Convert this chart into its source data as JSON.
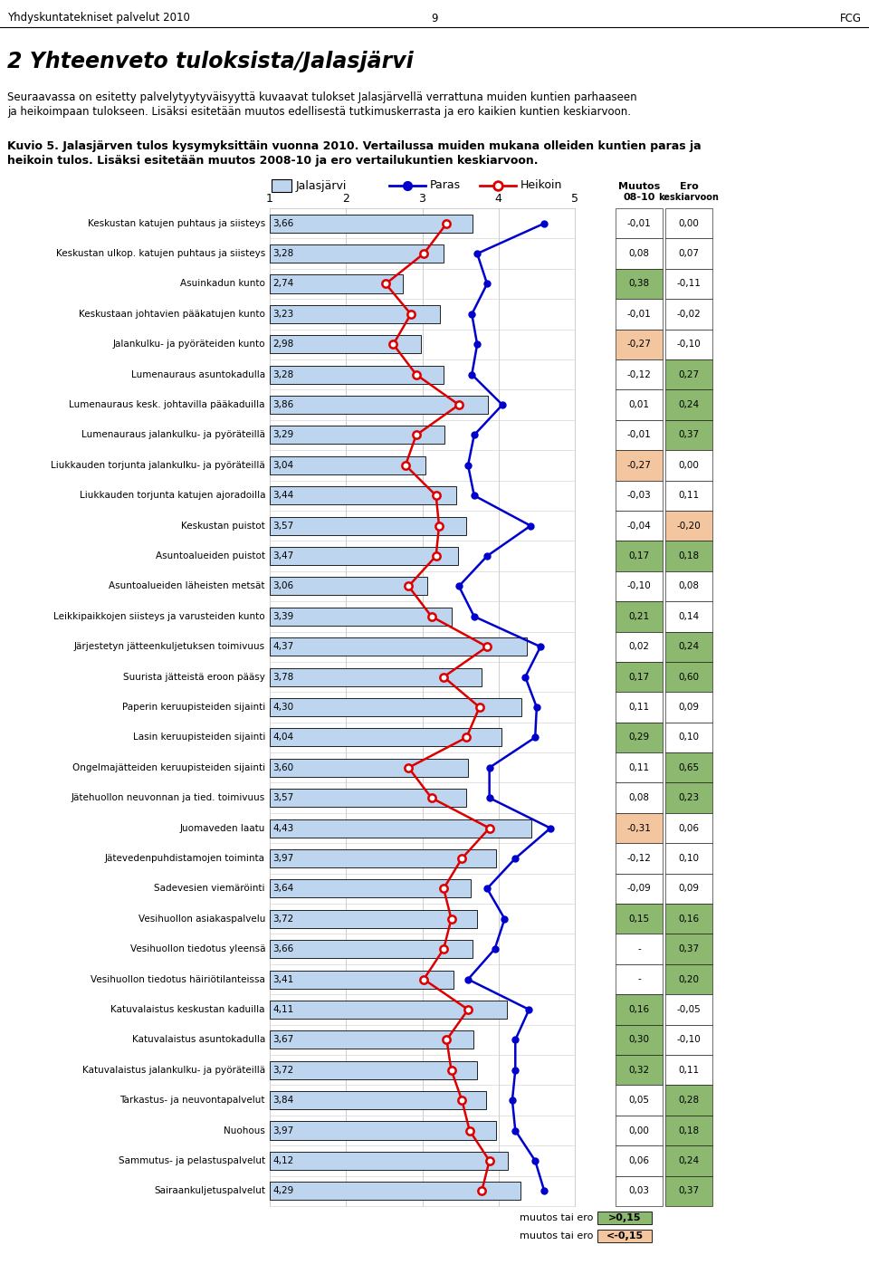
{
  "title_main": "2 Yhteenveto tuloksista/Jalasjärvi",
  "header_left": "Yhdyskuntatekniset palvelut 2010",
  "header_center": "9",
  "header_right": "FCG",
  "intro_text1": "Seuraavassa on esitetty palvelytyytyväisyyttä kuvaavat tulokset Jalasjärvellä verrattuna muiden kuntien parhaaseen",
  "intro_text2": "ja heikoimpaan tulokseen. Lisäksi esitetään muutos edellisestä tutkimuskerrasta ja ero kaikien kuntien keskiarvoon.",
  "caption1": "Kuvio 5. Jalasjärven tulos kysymyksittäin vuonna 2010. Vertailussa muiden mukana olleiden kuntien paras ja",
  "caption2": "heikoin tulos. Lisäksi esitetään muutos 2008-10 ja ero vertailukuntien keskiarvoon.",
  "categories": [
    "Keskustan katujen puhtaus ja siisteys",
    "Keskustan ulkop. katujen puhtaus ja siisteys",
    "Asuinkadun kunto",
    "Keskustaan johtavien pääkatujen kunto",
    "Jalankulku- ja pyöräteiden kunto",
    "Lumenauraus asuntokadulla",
    "Lumenauraus kesk. johtavilla pääkaduilla",
    "Lumenauraus jalankulku- ja pyöräteillä",
    "Liukkauden torjunta jalankulku- ja pyöräteillä",
    "Liukkauden torjunta katujen ajoradoilla",
    "Keskustan puistot",
    "Asuntoalueiden puistot",
    "Asuntoalueiden läheisten metsät",
    "Leikkipaikkojen siisteys ja varusteiden kunto",
    "Järjestetyn jätteenkuljetuksen toimivuus",
    "Suurista jätteistä eroon pääsy",
    "Paperin keruupisteiden sijainti",
    "Lasin keruupisteiden sijainti",
    "Ongelmajätteiden keruupisteiden sijainti",
    "Jätehuollon neuvonnan ja tied. toimivuus",
    "Juomaveden laatu",
    "Jätevedenpuhdistamojen toiminta",
    "Sadevesien viemäröinti",
    "Vesihuollon asiakaspalvelu",
    "Vesihuollon tiedotus yleensä",
    "Vesihuollon tiedotus häiriötilanteissa",
    "Katuvalaistus keskustan kaduilla",
    "Katuvalaistus asuntokadulla",
    "Katuvalaistus jalankulku- ja pyöräteillä",
    "Tarkastus- ja neuvontapalvelut",
    "Nuohous",
    "Sammutus- ja pelastuspalvelut",
    "Sairaankuljetuspalvelut"
  ],
  "jalajarvi_values": [
    3.66,
    3.28,
    2.74,
    3.23,
    2.98,
    3.28,
    3.86,
    3.29,
    3.04,
    3.44,
    3.57,
    3.47,
    3.06,
    3.39,
    4.37,
    3.78,
    4.3,
    4.04,
    3.6,
    3.57,
    4.43,
    3.97,
    3.64,
    3.72,
    3.66,
    3.41,
    4.11,
    3.67,
    3.72,
    3.84,
    3.97,
    4.12,
    4.29
  ],
  "paras_values": [
    4.6,
    3.72,
    3.85,
    3.65,
    3.72,
    3.65,
    4.05,
    3.68,
    3.6,
    3.68,
    4.42,
    3.85,
    3.48,
    3.68,
    4.55,
    4.35,
    4.5,
    4.48,
    3.88,
    3.88,
    4.68,
    4.22,
    3.85,
    4.08,
    3.95,
    3.6,
    4.4,
    4.22,
    4.22,
    4.18,
    4.22,
    4.48,
    4.6
  ],
  "heikoin_values": [
    3.32,
    3.02,
    2.52,
    2.85,
    2.62,
    2.92,
    3.48,
    2.92,
    2.78,
    3.18,
    3.22,
    3.18,
    2.82,
    3.12,
    3.85,
    3.28,
    3.75,
    3.58,
    2.82,
    3.12,
    3.88,
    3.52,
    3.28,
    3.38,
    3.28,
    3.02,
    3.6,
    3.32,
    3.38,
    3.52,
    3.62,
    3.88,
    3.78
  ],
  "muutos": [
    "-0,01",
    "0,08",
    "0,38",
    "-0,01",
    "-0,27",
    "-0,12",
    "0,01",
    "-0,01",
    "-0,27",
    "-0,03",
    "-0,04",
    "0,17",
    "-0,10",
    "0,21",
    "0,02",
    "0,17",
    "0,11",
    "0,29",
    "0,11",
    "0,08",
    "-0,31",
    "-0,12",
    "-0,09",
    "0,15",
    "-",
    "-",
    "0,16",
    "0,30",
    "0,32",
    "0,05",
    "0,00",
    "0,06",
    "0,03"
  ],
  "ero": [
    "0,00",
    "0,07",
    "-0,11",
    "-0,02",
    "-0,10",
    "0,27",
    "0,24",
    "0,37",
    "0,00",
    "0,11",
    "-0,20",
    "0,18",
    "0,08",
    "0,14",
    "0,24",
    "0,60",
    "0,09",
    "0,10",
    "0,65",
    "0,23",
    "0,06",
    "0,10",
    "0,09",
    "0,16",
    "0,37",
    "0,20",
    "-0,05",
    "-0,10",
    "0,11",
    "0,28",
    "0,18",
    "0,24",
    "0,37"
  ],
  "muutos_raw": [
    -0.01,
    0.08,
    0.38,
    -0.01,
    -0.27,
    -0.12,
    0.01,
    -0.01,
    -0.27,
    -0.03,
    -0.04,
    0.17,
    -0.1,
    0.21,
    0.02,
    0.17,
    0.11,
    0.29,
    0.11,
    0.08,
    -0.31,
    -0.12,
    -0.09,
    0.15,
    null,
    null,
    0.16,
    0.3,
    0.32,
    0.05,
    0.0,
    0.06,
    0.03
  ],
  "ero_raw": [
    0.0,
    0.07,
    -0.11,
    -0.02,
    -0.1,
    0.27,
    0.24,
    0.37,
    0.0,
    0.11,
    -0.2,
    0.18,
    0.08,
    0.14,
    0.24,
    0.6,
    0.09,
    0.1,
    0.65,
    0.23,
    0.06,
    0.1,
    0.09,
    0.16,
    0.37,
    0.2,
    -0.05,
    -0.1,
    0.11,
    0.28,
    0.18,
    0.24,
    0.37
  ],
  "color_green": "#8DB870",
  "color_orange": "#F4C6A0",
  "color_bar": "#BDD5EE",
  "color_blue_line": "#0000CD",
  "color_red_line": "#DD0000",
  "threshold": 0.15,
  "xmin": 1,
  "xmax": 5
}
